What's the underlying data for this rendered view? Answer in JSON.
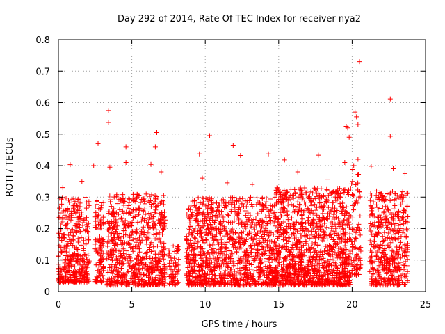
{
  "chart_data": {
    "type": "scatter",
    "title": "Day 292 of 2014, Rate Of TEC Index for receiver nya2",
    "xlabel": "GPS time / hours",
    "ylabel": "ROTI / TECUs",
    "xlim": [
      0,
      25
    ],
    "ylim": [
      0,
      0.8
    ],
    "xticks": [
      0,
      5,
      10,
      15,
      20,
      25
    ],
    "yticks": [
      0,
      0.1,
      0.2,
      0.3,
      0.4,
      0.5,
      0.6,
      0.7,
      0.8
    ],
    "xtick_labels": [
      "0",
      "5",
      "10",
      "15",
      "20",
      "25"
    ],
    "ytick_labels": [
      "0",
      "0.1",
      "0.2",
      "0.3",
      "0.4",
      "0.5",
      "0.6",
      "0.7",
      "0.8"
    ],
    "grid": true,
    "marker": "+",
    "series_color": "#ff0000",
    "series": [
      {
        "name": "ROTI",
        "points": [
          [
            20.5,
            0.73
          ],
          [
            22.6,
            0.612
          ],
          [
            3.4,
            0.575
          ],
          [
            3.4,
            0.537
          ],
          [
            6.7,
            0.505
          ],
          [
            20.2,
            0.57
          ],
          [
            20.3,
            0.555
          ],
          [
            20.4,
            0.53
          ],
          [
            19.6,
            0.525
          ],
          [
            19.7,
            0.52
          ],
          [
            22.6,
            0.493
          ],
          [
            10.3,
            0.495
          ],
          [
            4.6,
            0.46
          ],
          [
            6.6,
            0.46
          ],
          [
            19.8,
            0.49
          ],
          [
            2.7,
            0.47
          ],
          [
            11.9,
            0.463
          ],
          [
            14.3,
            0.437
          ],
          [
            9.6,
            0.437
          ],
          [
            17.7,
            0.433
          ],
          [
            0.8,
            0.403
          ],
          [
            6.3,
            0.404
          ],
          [
            12.4,
            0.432
          ],
          [
            15.4,
            0.418
          ],
          [
            20.4,
            0.42
          ],
          [
            2.4,
            0.4
          ],
          [
            4.6,
            0.41
          ],
          [
            3.5,
            0.395
          ],
          [
            19.5,
            0.41
          ],
          [
            22.8,
            0.39
          ],
          [
            21.3,
            0.398
          ],
          [
            23.6,
            0.375
          ],
          [
            7.0,
            0.38
          ],
          [
            9.8,
            0.36
          ],
          [
            16.3,
            0.38
          ],
          [
            13.2,
            0.34
          ],
          [
            1.6,
            0.35
          ],
          [
            0.3,
            0.33
          ],
          [
            18.3,
            0.355
          ],
          [
            11.5,
            0.345
          ]
        ],
        "clusters": [
          {
            "start": 0.0,
            "end": 2.1,
            "low": 0.03,
            "high": 0.3,
            "density": 4
          },
          {
            "start": 2.5,
            "end": 3.1,
            "low": 0.03,
            "high": 0.3,
            "density": 4
          },
          {
            "start": 3.3,
            "end": 7.3,
            "low": 0.02,
            "high": 0.31,
            "density": 4
          },
          {
            "start": 7.5,
            "end": 8.2,
            "low": 0.02,
            "high": 0.15,
            "density": 2
          },
          {
            "start": 8.7,
            "end": 14.7,
            "low": 0.02,
            "high": 0.3,
            "density": 4
          },
          {
            "start": 14.7,
            "end": 19.9,
            "low": 0.02,
            "high": 0.33,
            "density": 5
          },
          {
            "start": 19.9,
            "end": 20.6,
            "low": 0.05,
            "high": 0.4,
            "density": 3
          },
          {
            "start": 21.2,
            "end": 23.8,
            "low": 0.02,
            "high": 0.32,
            "density": 4
          }
        ]
      }
    ]
  }
}
